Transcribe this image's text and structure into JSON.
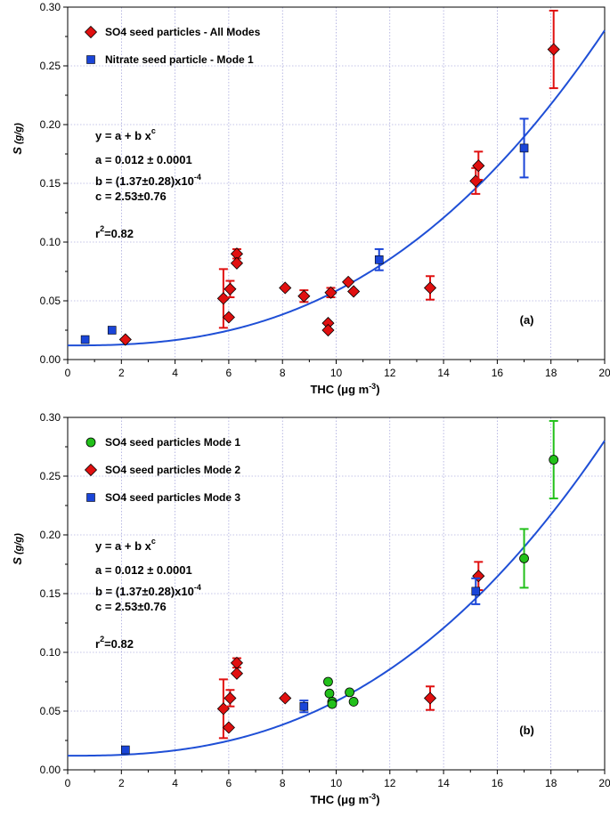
{
  "colors": {
    "red": "#e01010",
    "blue": "#1a45d8",
    "green": "#22c01a",
    "curve": "#1f4fd6",
    "grid": "#8a8ad0"
  },
  "chart_data": [
    {
      "type": "scatter",
      "panel_label": "(a)",
      "xlabel_main": "THC (",
      "xlabel_mu": "μg m",
      "xlabel_sup": "-3",
      "xlabel_end": ")",
      "ylabel_main": "S",
      "ylabel_unit": " (g/g)",
      "xlim": [
        0,
        20
      ],
      "ylim": [
        0,
        0.3
      ],
      "xticks": [
        "0",
        "2",
        "4",
        "6",
        "8",
        "10",
        "12",
        "14",
        "16",
        "18",
        "20"
      ],
      "yticks": [
        "0.00",
        "0.05",
        "0.10",
        "0.15",
        "0.20",
        "0.25",
        "0.30"
      ],
      "grid": true,
      "legend_position": "top-left",
      "fit": {
        "model": "y = a + b x^c",
        "a": 0.012,
        "b": 0.000137,
        "c": 2.53
      },
      "annotations": {
        "eq_prefix": "y = a + b x",
        "eq_sup": "c",
        "a_line": "a = 0.012 ± 0.0001",
        "b_line": "b = (1.37±0.28)x10",
        "b_sup": "-4",
        "c_line": "c = 2.53±0.76",
        "r2_pre": "r",
        "r2_sup": "2",
        "r2_post": "=0.82"
      },
      "series": [
        {
          "name": "SO4 seed particles - All Modes",
          "marker": "diamond",
          "color": "red",
          "points": [
            {
              "x": 2.15,
              "y": 0.017
            },
            {
              "x": 5.8,
              "y": 0.052,
              "err": 0.025
            },
            {
              "x": 6.0,
              "y": 0.036
            },
            {
              "x": 6.05,
              "y": 0.06,
              "err": 0.007
            },
            {
              "x": 6.3,
              "y": 0.09,
              "err": 0.004
            },
            {
              "x": 6.3,
              "y": 0.082
            },
            {
              "x": 8.1,
              "y": 0.061
            },
            {
              "x": 8.8,
              "y": 0.054,
              "err": 0.005
            },
            {
              "x": 9.7,
              "y": 0.031
            },
            {
              "x": 9.7,
              "y": 0.025
            },
            {
              "x": 9.8,
              "y": 0.057,
              "err": 0.004
            },
            {
              "x": 10.45,
              "y": 0.066
            },
            {
              "x": 10.65,
              "y": 0.058
            },
            {
              "x": 13.5,
              "y": 0.061,
              "err": 0.01
            },
            {
              "x": 15.2,
              "y": 0.152,
              "err": 0.011
            },
            {
              "x": 15.3,
              "y": 0.165,
              "err": 0.012
            },
            {
              "x": 18.1,
              "y": 0.264,
              "err": 0.033
            }
          ]
        },
        {
          "name": "Nitrate seed particle - Mode 1",
          "marker": "square",
          "color": "blue",
          "points": [
            {
              "x": 0.65,
              "y": 0.017
            },
            {
              "x": 1.65,
              "y": 0.025
            },
            {
              "x": 11.6,
              "y": 0.085,
              "err": 0.009
            },
            {
              "x": 17.0,
              "y": 0.18,
              "err": 0.025
            }
          ]
        }
      ]
    },
    {
      "type": "scatter",
      "panel_label": "(b)",
      "xlabel_main": "THC (",
      "xlabel_mu": "μg m",
      "xlabel_sup": "-3",
      "xlabel_end": ")",
      "ylabel_main": "S",
      "ylabel_unit": " (g/g)",
      "xlim": [
        0,
        20
      ],
      "ylim": [
        0,
        0.3
      ],
      "xticks": [
        "0",
        "2",
        "4",
        "6",
        "8",
        "10",
        "12",
        "14",
        "16",
        "18",
        "20"
      ],
      "yticks": [
        "0.00",
        "0.05",
        "0.10",
        "0.15",
        "0.20",
        "0.25",
        "0.30"
      ],
      "grid": true,
      "legend_position": "top-left",
      "fit": {
        "model": "y = a + b x^c",
        "a": 0.012,
        "b": 0.000137,
        "c": 2.53
      },
      "annotations": {
        "eq_prefix": "y = a + b x",
        "eq_sup": "c",
        "a_line": "a = 0.012 ± 0.0001",
        "b_line": "b = (1.37±0.28)x10",
        "b_sup": "-4",
        "c_line": "c = 2.53±0.76",
        "r2_pre": "r",
        "r2_sup": "2",
        "r2_post": "=0.82"
      },
      "series": [
        {
          "name": "SO4 seed particles Mode 1",
          "marker": "circle",
          "color": "green",
          "points": [
            {
              "x": 9.7,
              "y": 0.075
            },
            {
              "x": 9.75,
              "y": 0.065
            },
            {
              "x": 9.85,
              "y": 0.058
            },
            {
              "x": 9.85,
              "y": 0.056
            },
            {
              "x": 10.5,
              "y": 0.066
            },
            {
              "x": 10.65,
              "y": 0.058
            },
            {
              "x": 17.0,
              "y": 0.18,
              "err": 0.025
            },
            {
              "x": 18.1,
              "y": 0.264,
              "err": 0.033
            }
          ]
        },
        {
          "name": "SO4 seed particles Mode 2",
          "marker": "diamond",
          "color": "red",
          "points": [
            {
              "x": 5.8,
              "y": 0.052,
              "err": 0.025
            },
            {
              "x": 6.0,
              "y": 0.036
            },
            {
              "x": 6.05,
              "y": 0.061,
              "err": 0.007
            },
            {
              "x": 6.3,
              "y": 0.091,
              "err": 0.004
            },
            {
              "x": 6.3,
              "y": 0.082
            },
            {
              "x": 8.1,
              "y": 0.061
            },
            {
              "x": 13.5,
              "y": 0.061,
              "err": 0.01
            },
            {
              "x": 15.3,
              "y": 0.165,
              "err": 0.012
            }
          ]
        },
        {
          "name": "SO4 seed particles Mode 3",
          "marker": "square",
          "color": "blue",
          "points": [
            {
              "x": 2.15,
              "y": 0.017
            },
            {
              "x": 8.8,
              "y": 0.054,
              "err": 0.005
            },
            {
              "x": 15.2,
              "y": 0.152,
              "err": 0.011
            }
          ]
        }
      ]
    }
  ]
}
